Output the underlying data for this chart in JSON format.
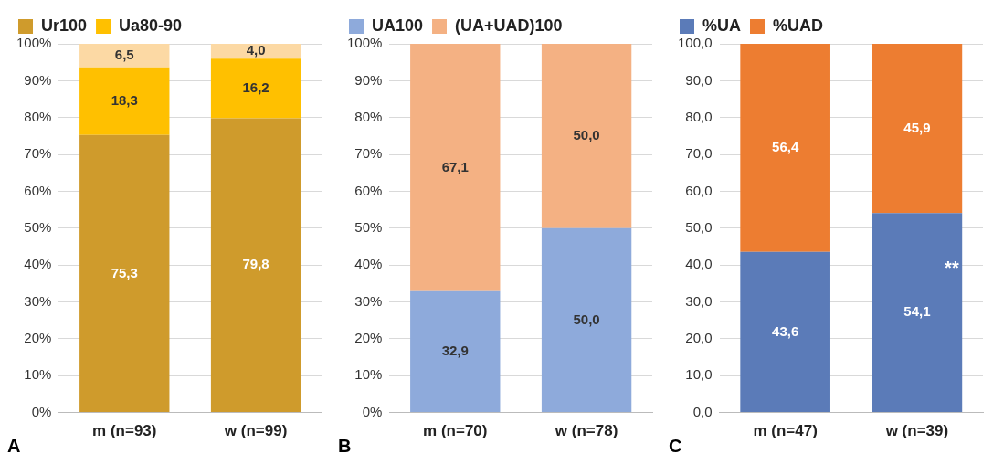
{
  "chart_data": [
    {
      "type": "bar",
      "stacked": true,
      "categories": [
        "m (n=93)",
        "w (n=99)"
      ],
      "series": [
        {
          "name": "Ur100",
          "color": "#cf9b2c",
          "values": [
            75.3,
            79.8
          ],
          "value_labels": [
            "75,3",
            "79,8"
          ]
        },
        {
          "name": "Ua80-90",
          "color": "#ffc000",
          "values": [
            18.3,
            16.2
          ],
          "value_labels": [
            "18,3",
            "16,2"
          ]
        },
        {
          "color": "#fcd9a4",
          "values": [
            6.5,
            4.0
          ],
          "value_labels": [
            "6,5",
            "4,0"
          ]
        }
      ],
      "ylim": [
        0,
        100
      ],
      "yticks": [
        {
          "value": 0,
          "label": "0%"
        },
        {
          "value": 10,
          "label": "10%"
        },
        {
          "value": 20,
          "label": "20%"
        },
        {
          "value": 30,
          "label": "30%"
        },
        {
          "value": 40,
          "label": "40%"
        },
        {
          "value": 50,
          "label": "50%"
        },
        {
          "value": 60,
          "label": "60%"
        },
        {
          "value": 70,
          "label": "70%"
        },
        {
          "value": 80,
          "label": "80%"
        },
        {
          "value": 90,
          "label": "90%"
        },
        {
          "value": 100,
          "label": "100%"
        }
      ],
      "grid": "y",
      "legend": "top",
      "annotations": [
        "A"
      ]
    },
    {
      "type": "bar",
      "stacked": true,
      "categories": [
        "m (n=70)",
        "w (n=78)"
      ],
      "series": [
        {
          "name": "UA100",
          "color": "#8eaadb",
          "values": [
            32.9,
            50.0
          ],
          "value_labels": [
            "32,9",
            "50,0"
          ]
        },
        {
          "name": "(UA+UAD)100",
          "color": "#f4b183",
          "values": [
            67.1,
            50.0
          ],
          "value_labels": [
            "67,1",
            "50,0"
          ]
        }
      ],
      "ylim": [
        0,
        100
      ],
      "yticks": [
        {
          "value": 0,
          "label": "0%"
        },
        {
          "value": 10,
          "label": "10%"
        },
        {
          "value": 20,
          "label": "20%"
        },
        {
          "value": 30,
          "label": "30%"
        },
        {
          "value": 40,
          "label": "40%"
        },
        {
          "value": 50,
          "label": "50%"
        },
        {
          "value": 60,
          "label": "60%"
        },
        {
          "value": 70,
          "label": "70%"
        },
        {
          "value": 80,
          "label": "80%"
        },
        {
          "value": 90,
          "label": "90%"
        },
        {
          "value": 100,
          "label": "100%"
        }
      ],
      "grid": "y",
      "legend": "top",
      "annotations": [
        "B"
      ]
    },
    {
      "type": "bar",
      "stacked": true,
      "categories": [
        "m (n=47)",
        "w (n=39)"
      ],
      "series": [
        {
          "name": "%UA",
          "color": "#5b7bb8",
          "values": [
            43.6,
            54.1
          ],
          "value_labels": [
            "43,6",
            "54,1"
          ]
        },
        {
          "name": "%UAD",
          "color": "#ed7d31",
          "values": [
            56.4,
            45.9
          ],
          "value_labels": [
            "56,4",
            "45,9"
          ]
        }
      ],
      "ylim": [
        0,
        100
      ],
      "yticks": [
        {
          "value": 0,
          "label": "0,0"
        },
        {
          "value": 10,
          "label": "10,0"
        },
        {
          "value": 20,
          "label": "20,0"
        },
        {
          "value": 30,
          "label": "30,0"
        },
        {
          "value": 40,
          "label": "40,0"
        },
        {
          "value": 50,
          "label": "50,0"
        },
        {
          "value": 60,
          "label": "60,0"
        },
        {
          "value": 70,
          "label": "70,0"
        },
        {
          "value": 80,
          "label": "80,0"
        },
        {
          "value": 90,
          "label": "90,0"
        },
        {
          "value": 100,
          "label": "100,0"
        }
      ],
      "grid": "y",
      "legend": "top",
      "annotations": [
        "C",
        "**"
      ]
    }
  ]
}
